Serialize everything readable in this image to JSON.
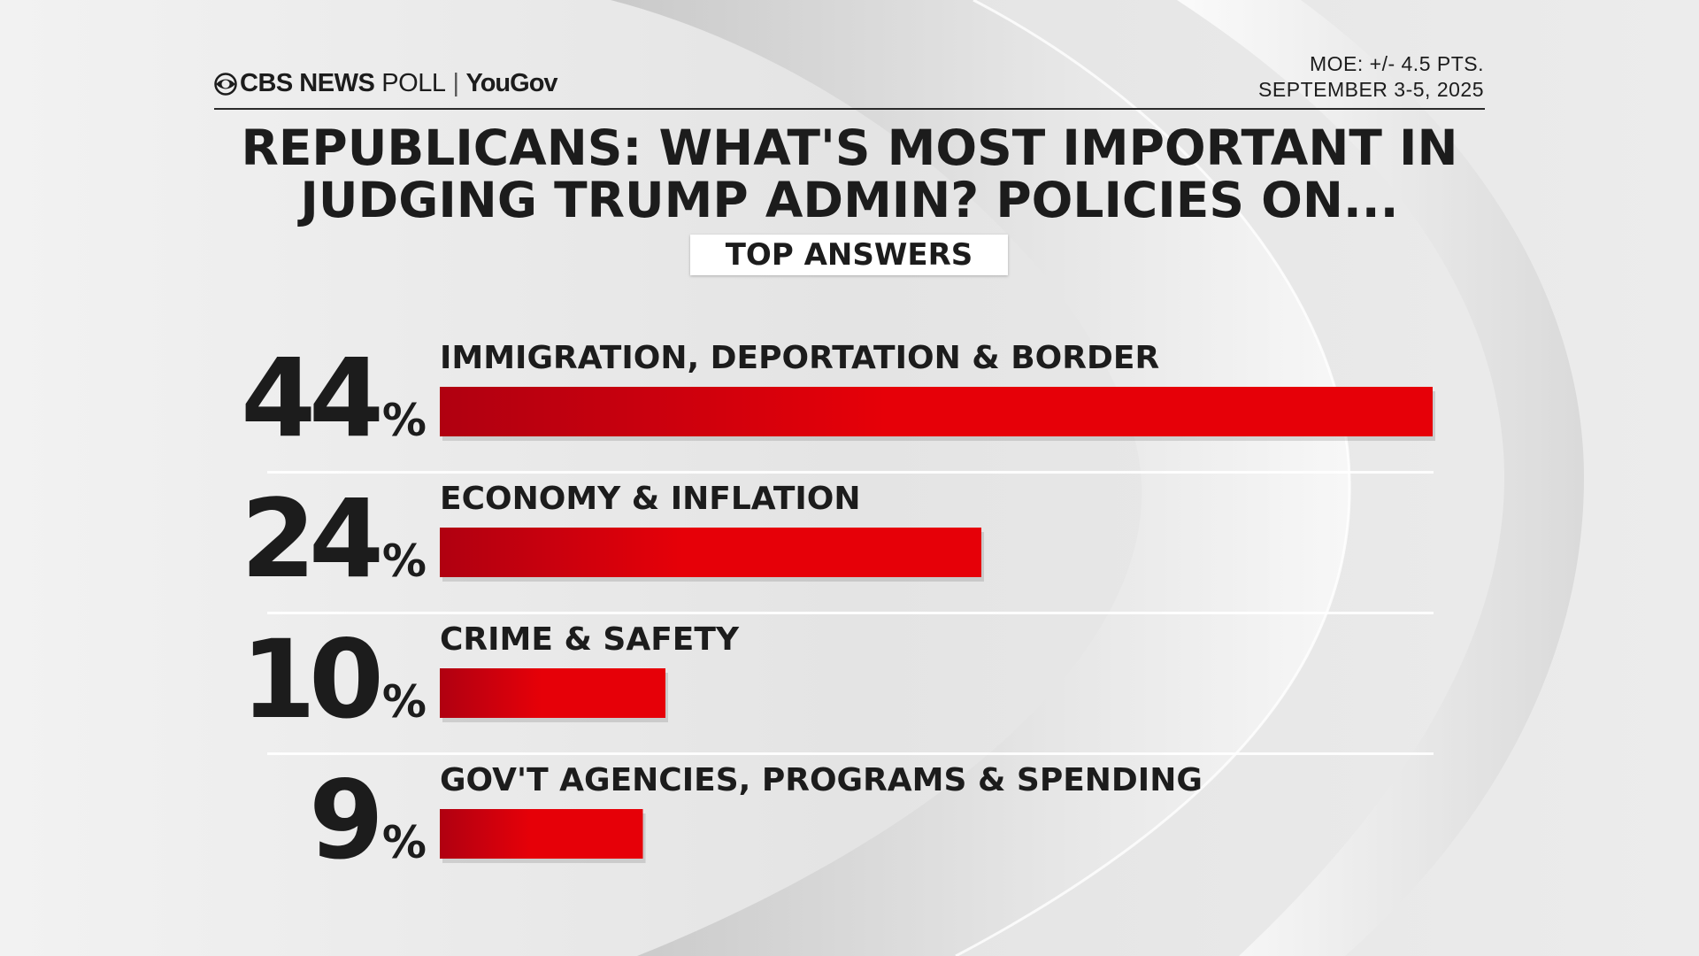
{
  "header": {
    "brand": "CBS NEWS",
    "product": "POLL",
    "separator": "|",
    "partner": "YouGov",
    "moe": "MOE: +/- 4.5 PTS.",
    "dates": "SEPTEMBER 3-5, 2025"
  },
  "title": {
    "line1": "REPUBLICANS: WHAT'S MOST IMPORTANT IN",
    "line2": "JUDGING TRUMP ADMIN? POLICIES ON..."
  },
  "subtitle": "TOP ANSWERS",
  "colors": {
    "bar_dark": "#b00010",
    "bar_light": "#e60008",
    "text": "#1c1c1c",
    "divider": "#ffffff"
  },
  "chart_data": {
    "type": "bar",
    "orientation": "horizontal",
    "title": "REPUBLICANS: WHAT'S MOST IMPORTANT IN JUDGING TRUMP ADMIN? POLICIES ON...",
    "subtitle": "TOP ANSWERS",
    "unit": "%",
    "xlim": [
      0,
      44
    ],
    "categories": [
      "IMMIGRATION, DEPORTATION & BORDER",
      "ECONOMY & INFLATION",
      "CRIME & SAFETY",
      "GOV'T AGENCIES, PROGRAMS & SPENDING"
    ],
    "values": [
      44,
      24,
      10,
      9
    ]
  }
}
